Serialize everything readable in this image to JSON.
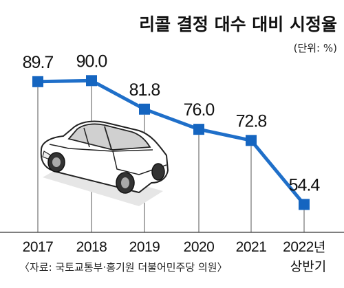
{
  "chart_data": {
    "type": "line",
    "title": "리콜 결정 대수 대비 시정율",
    "unit": "(단위: %)",
    "categories": [
      "2017",
      "2018",
      "2019",
      "2020",
      "2021",
      "2022년 상반기"
    ],
    "category_labels": [
      {
        "main": "2017",
        "suffix": "",
        "sub": ""
      },
      {
        "main": "2018",
        "suffix": "",
        "sub": ""
      },
      {
        "main": "2019",
        "suffix": "",
        "sub": ""
      },
      {
        "main": "2020",
        "suffix": "",
        "sub": ""
      },
      {
        "main": "2021",
        "suffix": "",
        "sub": ""
      },
      {
        "main": "2022",
        "suffix": "년",
        "sub": "상반기"
      }
    ],
    "values": [
      89.7,
      90.0,
      81.8,
      76.0,
      72.8,
      54.4
    ],
    "value_labels": [
      "89.7",
      "90.0",
      "81.8",
      "76.0",
      "72.8",
      "54.4"
    ],
    "source": "〈자료: 국토교통부·홍기원 더불어민주당 의원〉",
    "line_color": "#1f6fc9",
    "marker_color": "#1565c0",
    "grid": false,
    "ylim": [
      45,
      95
    ]
  },
  "illustration": {
    "icon": "car-icon"
  }
}
